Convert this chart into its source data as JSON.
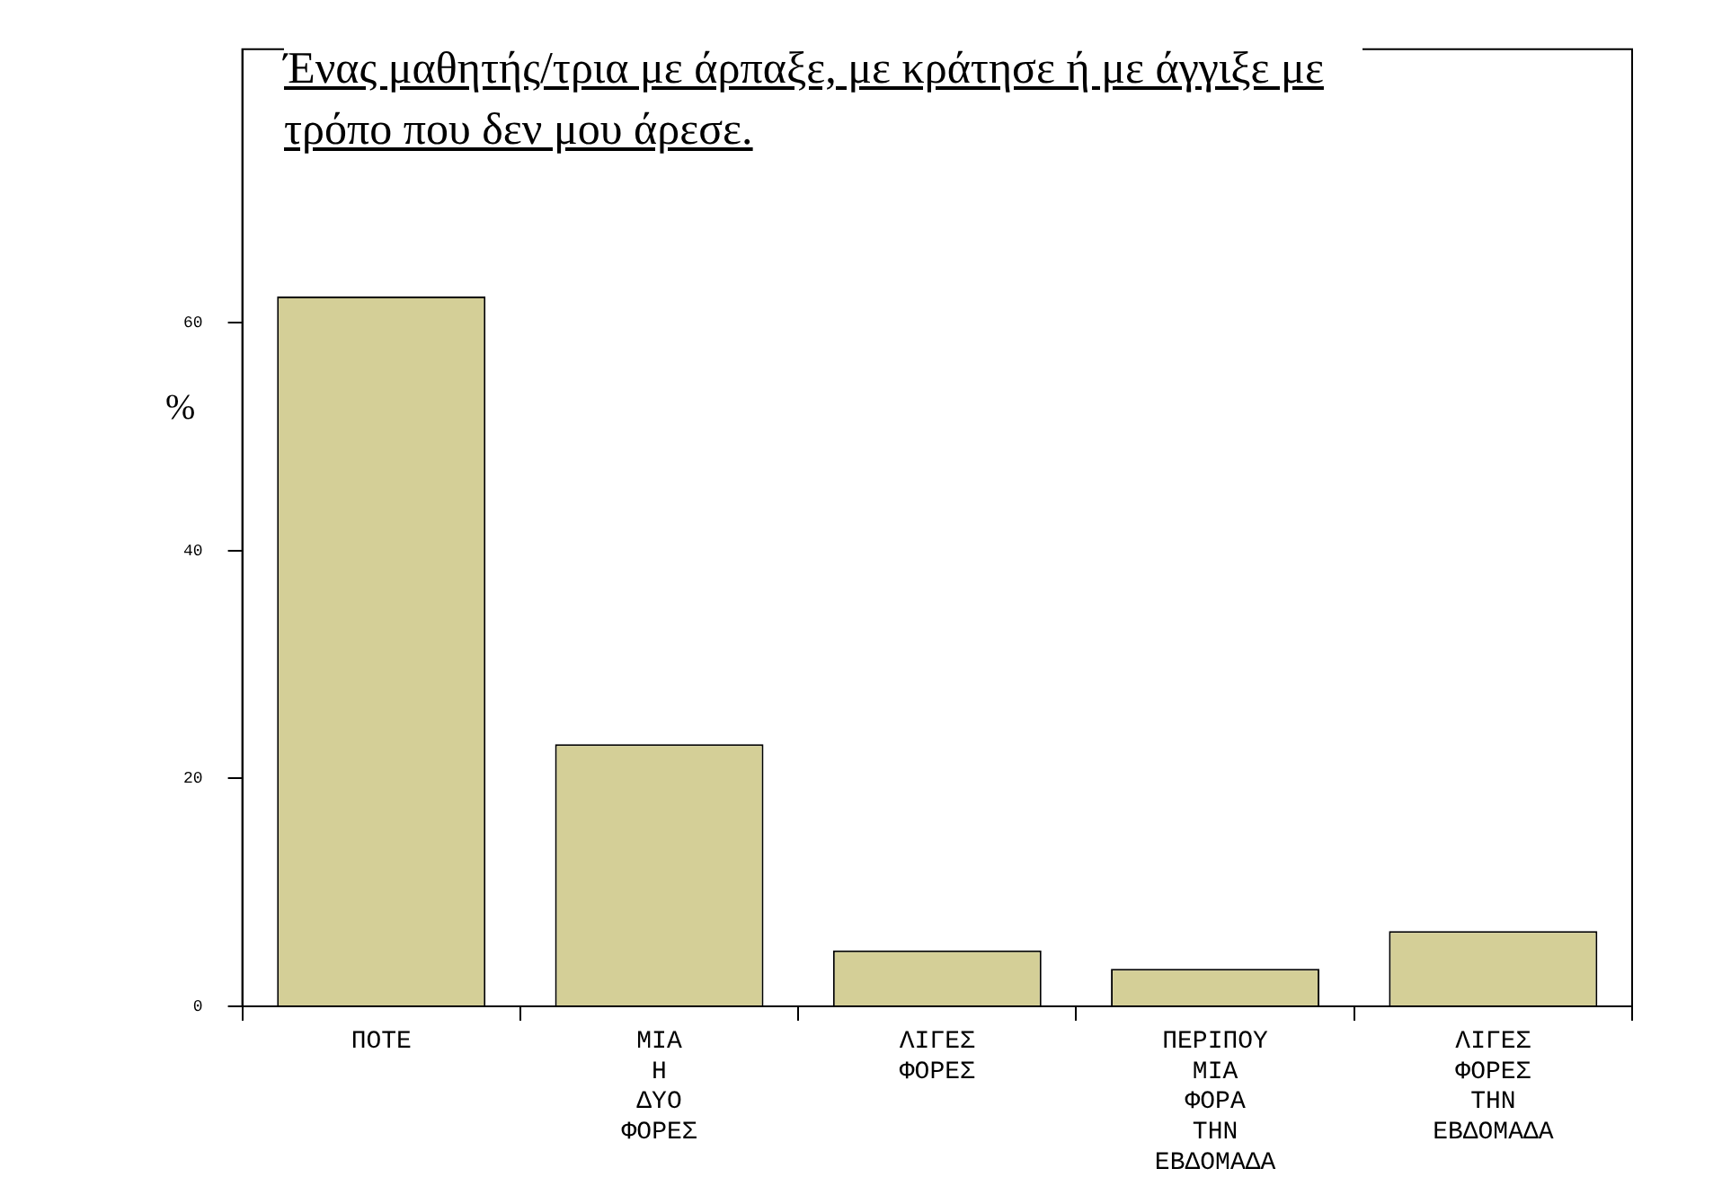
{
  "chart_data": {
    "type": "bar",
    "title": "Ένας μαθητής/τρια με άρπαξε, με κράτησε ή με άγγιξε με τρόπο που δεν μου άρεσε.",
    "ylabel": "%",
    "categories": [
      "ΠΟΤΕ",
      "ΜΙΑ Η ΔΥΟ ΦΟΡΕΣ",
      "ΛΙΓΕΣ ΦΟΡΕΣ",
      "ΠΕΡΙΠΟΥ ΜΙΑ ΦΟΡΑ ΤΗΝ ΕΒΔΟΜΑΔΑ",
      "ΛΙΓΕΣ ΦΟΡΕΣ ΤΗΝ ΕΒΔΟΜΑΔΑ"
    ],
    "values": [
      62.3,
      23,
      4.9,
      3.3,
      6.6
    ],
    "color": "#d4cf97",
    "ylim": [
      0,
      84
    ],
    "yticks": [
      0,
      20,
      40,
      60
    ],
    "grid": false,
    "legend": false
  }
}
